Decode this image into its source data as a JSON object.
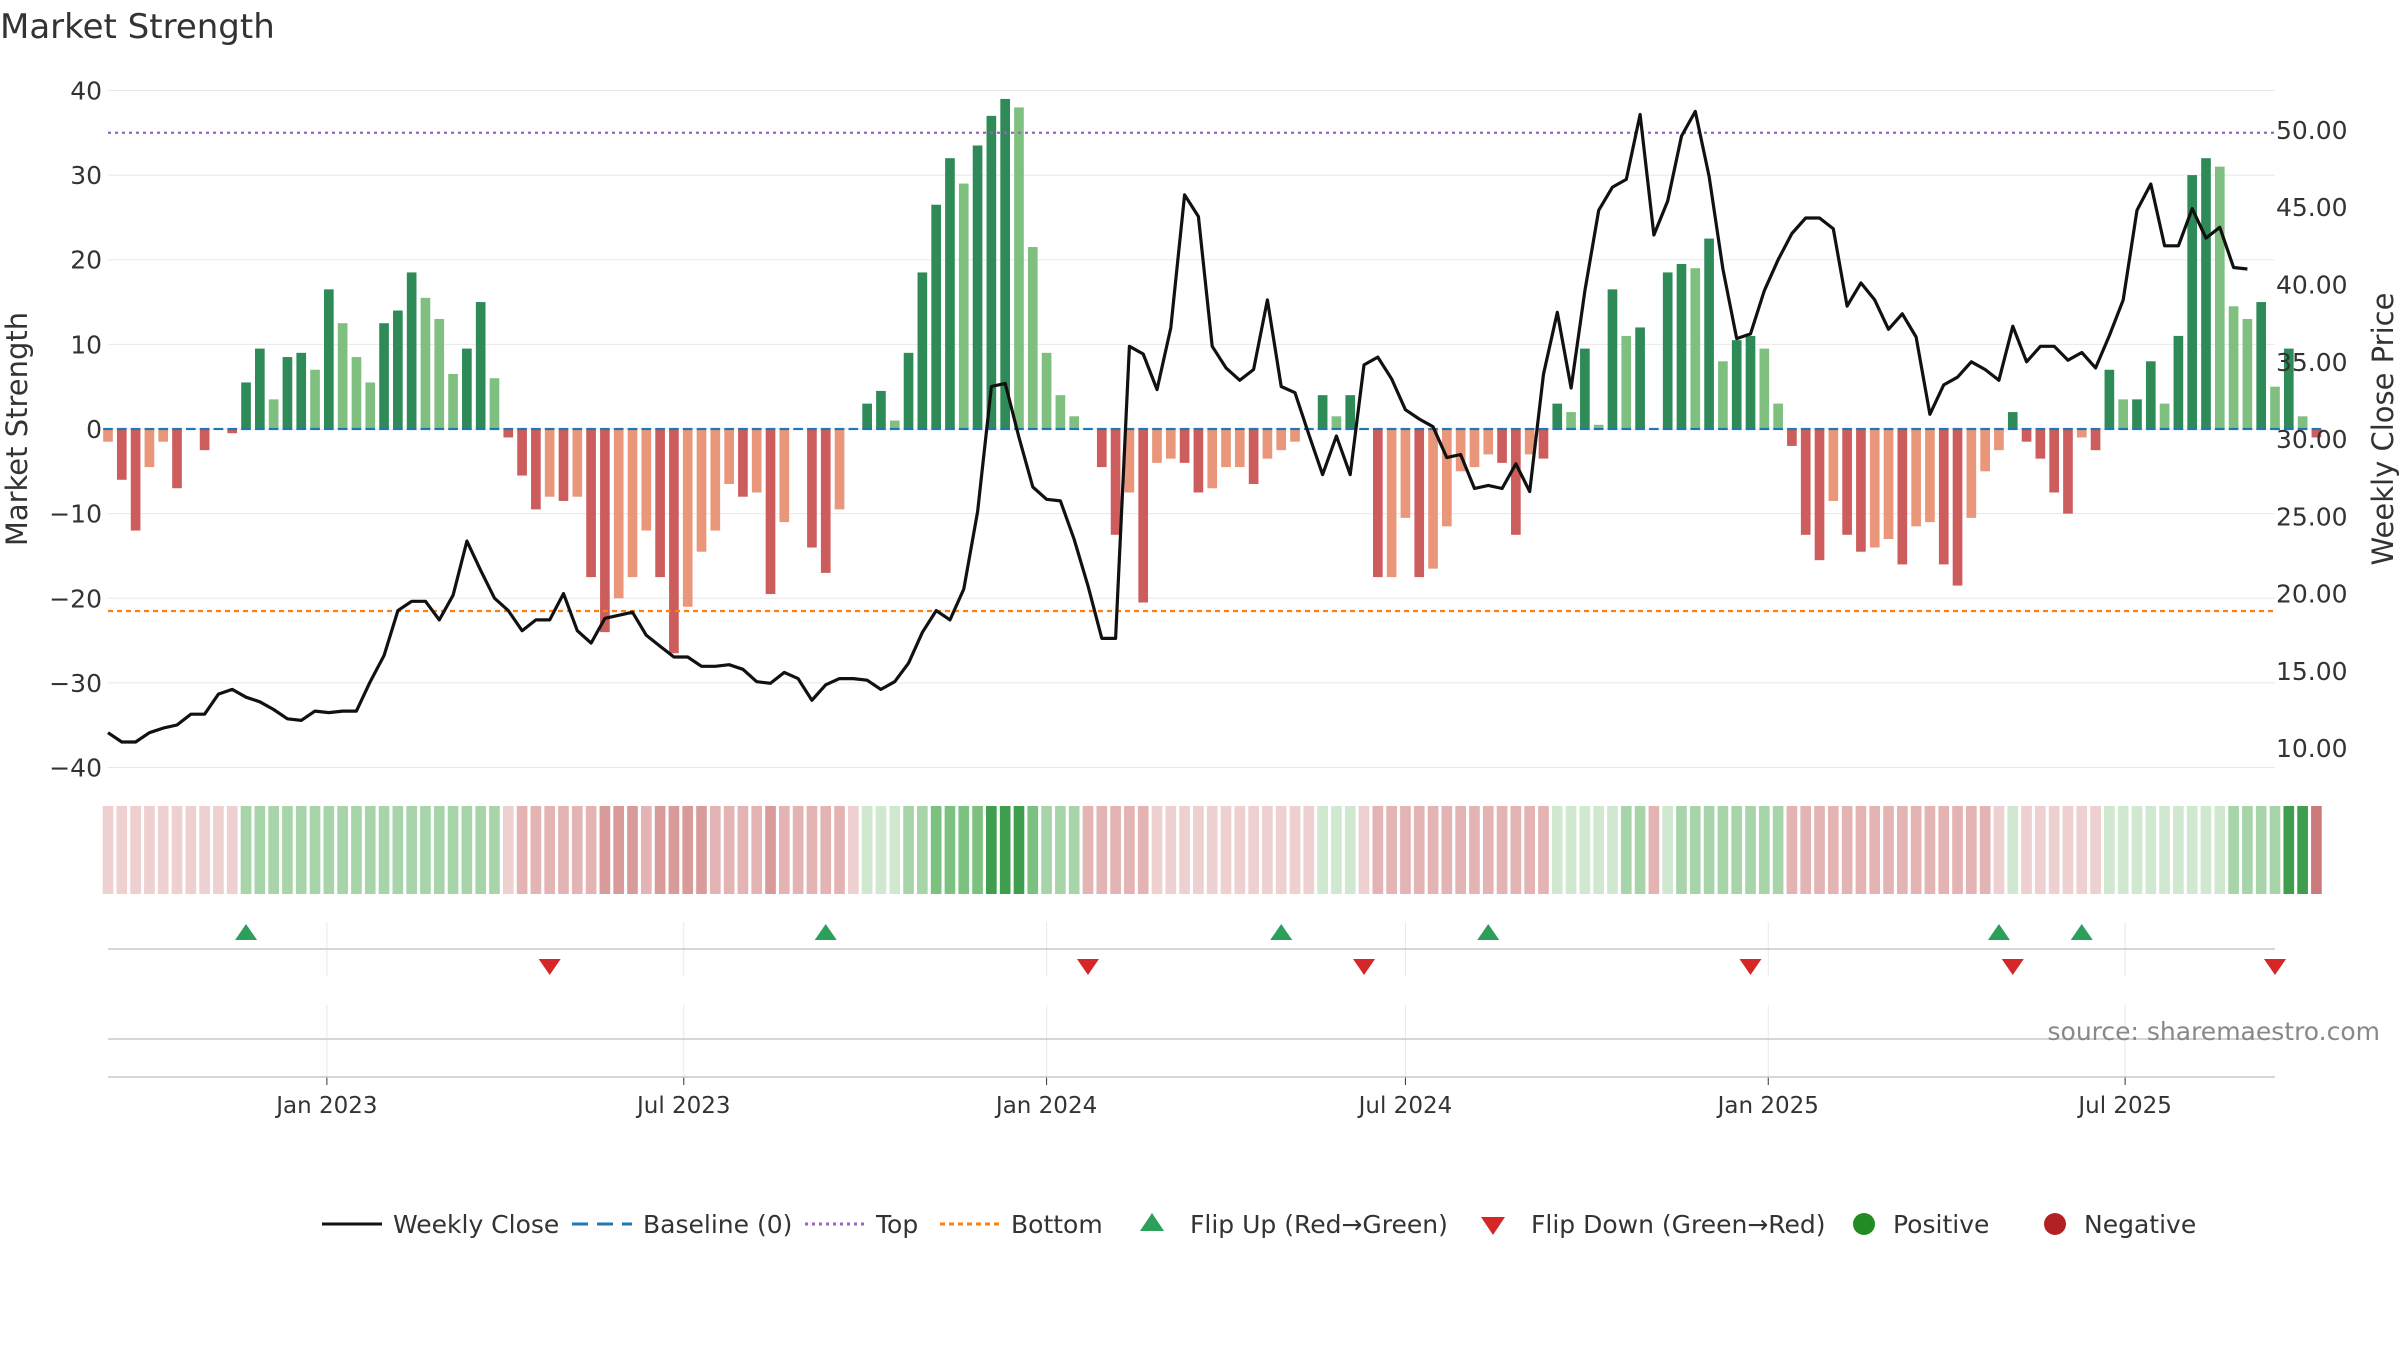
{
  "chart_data": {
    "type": "bar",
    "title": "Market Strength",
    "ylabel_left": "Market Strength",
    "ylabel_right": "Weekly Close Price",
    "ylim_left": [
      -41,
      41
    ],
    "ylim_right": [
      8.2,
      53.1
    ],
    "yticks_left": [
      40,
      30,
      20,
      10,
      0,
      -10,
      -20,
      -30,
      -40
    ],
    "yticks_left_labels": [
      "40",
      "30",
      "20",
      "10",
      "0",
      "−10",
      "−20",
      "−30",
      "−40"
    ],
    "yticks_right": [
      50,
      45,
      40,
      35,
      30,
      25,
      20,
      15,
      10
    ],
    "yticks_right_labels": [
      "50.00",
      "45.00",
      "40.00",
      "35.00",
      "30.00",
      "25.00",
      "20.00",
      "15.00",
      "10.00"
    ],
    "x_start": "2022-09-12",
    "x_end": "2025-09-15",
    "xticks": [
      "2023-01-01",
      "2023-07-01",
      "2024-01-01",
      "2024-07-01",
      "2025-01-01",
      "2025-07-01"
    ],
    "xtick_labels": [
      "Jan 2023",
      "Jul 2023",
      "Jan 2024",
      "Jul 2024",
      "Jan 2025",
      "Jul 2025"
    ],
    "top_threshold": 35,
    "bottom_threshold": -21.5,
    "source": "source: sharemaestro.com",
    "colors": {
      "green_strong": "#2e8b57",
      "green_light": "#7fbf7f",
      "red_strong": "#cd5c5c",
      "red_light": "#e9967a",
      "close_line": "#111111",
      "baseline": "#1f77b4",
      "top": "#9467bd",
      "bottom": "#ff7f0e",
      "flip_up": "#2ca05a",
      "flip_down": "#d62728",
      "positive": "#228b22",
      "negative": "#b22222"
    },
    "strength": [
      -1.5,
      -6,
      -12,
      -4.5,
      -1.5,
      -7,
      0,
      -2.5,
      0,
      -0.5,
      5.5,
      9.5,
      3.5,
      8.5,
      9,
      7,
      16.5,
      12.5,
      8.5,
      5.5,
      12.5,
      14,
      18.5,
      15.5,
      13,
      6.5,
      9.5,
      15,
      6,
      -1,
      -5.5,
      -9.5,
      -8,
      -8.5,
      -8,
      -17.5,
      -24,
      -20,
      -17.5,
      -12,
      -17.5,
      -26.5,
      -21,
      -14.5,
      -12,
      -6.5,
      -8,
      -7.5,
      -19.5,
      -11,
      0,
      -14,
      -17,
      -9.5,
      0,
      3,
      4.5,
      1,
      9,
      18.5,
      26.5,
      32,
      29,
      33.5,
      37,
      39,
      38,
      21.5,
      9,
      4,
      1.5,
      0,
      -4.5,
      -12.5,
      -7.5,
      -20.5,
      -4,
      -3.5,
      -4,
      -7.5,
      -7,
      -4.5,
      -4.5,
      -6.5,
      -3.5,
      -2.5,
      -1.5,
      0,
      4,
      1.5,
      4,
      0,
      -17.5,
      -17.5,
      -10.5,
      -17.5,
      -16.5,
      -11.5,
      -5,
      -4.5,
      -3,
      -4,
      -12.5,
      -3,
      -3.5,
      3,
      2,
      9.5,
      0.5,
      16.5,
      11,
      12,
      0,
      18.5,
      19.5,
      19,
      22.5,
      8,
      10.5,
      11,
      9.5,
      3,
      -2,
      -12.5,
      -15.5,
      -8.5,
      -12.5,
      -14.5,
      -14,
      -13,
      -16,
      -11.5,
      -11,
      -16,
      -18.5,
      -10.5,
      -5,
      -2.5,
      2,
      -1.5,
      -3.5,
      -7.5,
      -10,
      -1,
      -2.5,
      7,
      3.5,
      3.5,
      8,
      3,
      11,
      30,
      32,
      31,
      14.5,
      13,
      15,
      5,
      9.5,
      1.5,
      -1
    ],
    "close": [
      11.0,
      10.4,
      10.4,
      11.0,
      11.3,
      11.5,
      12.2,
      12.2,
      13.5,
      13.8,
      13.3,
      13.0,
      12.5,
      11.9,
      11.8,
      12.4,
      12.3,
      12.4,
      12.4,
      14.3,
      16.0,
      18.9,
      19.5,
      19.5,
      18.3,
      19.9,
      23.4,
      21.5,
      19.7,
      18.9,
      17.6,
      18.3,
      18.3,
      20.0,
      17.6,
      16.8,
      18.4,
      18.6,
      18.8,
      17.3,
      16.6,
      15.9,
      15.9,
      15.3,
      15.3,
      15.4,
      15.1,
      14.3,
      14.2,
      14.9,
      14.5,
      13.1,
      14.1,
      14.5,
      14.5,
      14.4,
      13.8,
      14.3,
      15.5,
      17.5,
      18.9,
      18.3,
      20.3,
      25.3,
      33.4,
      33.6,
      30.1,
      26.9,
      26.1,
      26.0,
      23.5,
      20.5,
      17.1,
      17.1,
      36.0,
      35.5,
      33.2,
      37.2,
      45.8,
      44.4,
      36.0,
      34.6,
      33.8,
      34.5,
      39.0,
      33.4,
      33.0,
      30.3,
      27.7,
      30.2,
      27.7,
      34.8,
      35.3,
      33.9,
      31.9,
      31.3,
      30.8,
      28.8,
      29.0,
      26.8,
      27.0,
      26.8,
      28.4,
      26.6,
      34.2,
      38.2,
      33.3,
      39.6,
      44.8,
      46.3,
      46.8,
      51.0,
      43.2,
      45.4,
      49.6,
      51.2,
      47.0,
      41.0,
      36.5,
      36.8,
      39.6,
      41.6,
      43.3,
      44.3,
      44.3,
      43.6,
      38.6,
      40.1,
      39.0,
      37.1,
      38.1,
      36.6,
      31.6,
      33.5,
      34.0,
      35.0,
      34.5,
      33.8,
      37.3,
      35.0,
      36.0,
      36.0,
      35.1,
      35.6,
      34.6,
      36.7,
      39.0,
      44.8,
      46.5,
      42.5,
      42.5,
      44.9,
      43.0,
      43.7,
      41.1,
      41.0
    ],
    "band_intensity": [
      1,
      1,
      1,
      1,
      1,
      1,
      1,
      1,
      1,
      1,
      2,
      2,
      2,
      2,
      2,
      2,
      2,
      2,
      2,
      2,
      2,
      2,
      2,
      2,
      2,
      2,
      2,
      2,
      2,
      1,
      2,
      2,
      2,
      2,
      2,
      2,
      3,
      3,
      3,
      2,
      3,
      3,
      3,
      3,
      2,
      2,
      2,
      2,
      3,
      2,
      2,
      2,
      2,
      2,
      1,
      1,
      1,
      1,
      2,
      2,
      3,
      3,
      3,
      3,
      4,
      4,
      4,
      3,
      2,
      2,
      2,
      2,
      2,
      2,
      2,
      2,
      1,
      1,
      1,
      1,
      1,
      1,
      1,
      1,
      1,
      1,
      1,
      1,
      1,
      1,
      1,
      1,
      2,
      2,
      2,
      2,
      2,
      2,
      2,
      2,
      2,
      2,
      2,
      2,
      2,
      1,
      1,
      1,
      1,
      1,
      2,
      2,
      2,
      1,
      2,
      2,
      2,
      2,
      2,
      2,
      2,
      2,
      2,
      2,
      2,
      2,
      2,
      2,
      2,
      2,
      2,
      2,
      2,
      2,
      2,
      2,
      2,
      1,
      1,
      1,
      1,
      1,
      1,
      1,
      1,
      1,
      1,
      1,
      1,
      1,
      1,
      1,
      1,
      1,
      2,
      2,
      2,
      2,
      4,
      4,
      4,
      3,
      2,
      2,
      2,
      2,
      2,
      1
    ],
    "flips_up": [
      "2022-11-21",
      "2023-09-11",
      "2024-04-29",
      "2024-08-12",
      "2025-04-28",
      "2025-06-09"
    ],
    "flips_down": [
      "2023-04-24",
      "2024-01-22",
      "2024-06-10",
      "2024-12-23",
      "2025-05-05",
      "2025-09-15"
    ],
    "legend": [
      {
        "key": "close",
        "label": "Weekly Close"
      },
      {
        "key": "baseline",
        "label": "Baseline (0)"
      },
      {
        "key": "top",
        "label": "Top"
      },
      {
        "key": "bottom",
        "label": "Bottom"
      },
      {
        "key": "flip_up",
        "label": "Flip Up (Red→Green)"
      },
      {
        "key": "flip_down",
        "label": "Flip Down (Green→Red)"
      },
      {
        "key": "positive",
        "label": "Positive"
      },
      {
        "key": "negative",
        "label": "Negative"
      }
    ],
    "legend_position": "bottom-center",
    "grid": true
  }
}
